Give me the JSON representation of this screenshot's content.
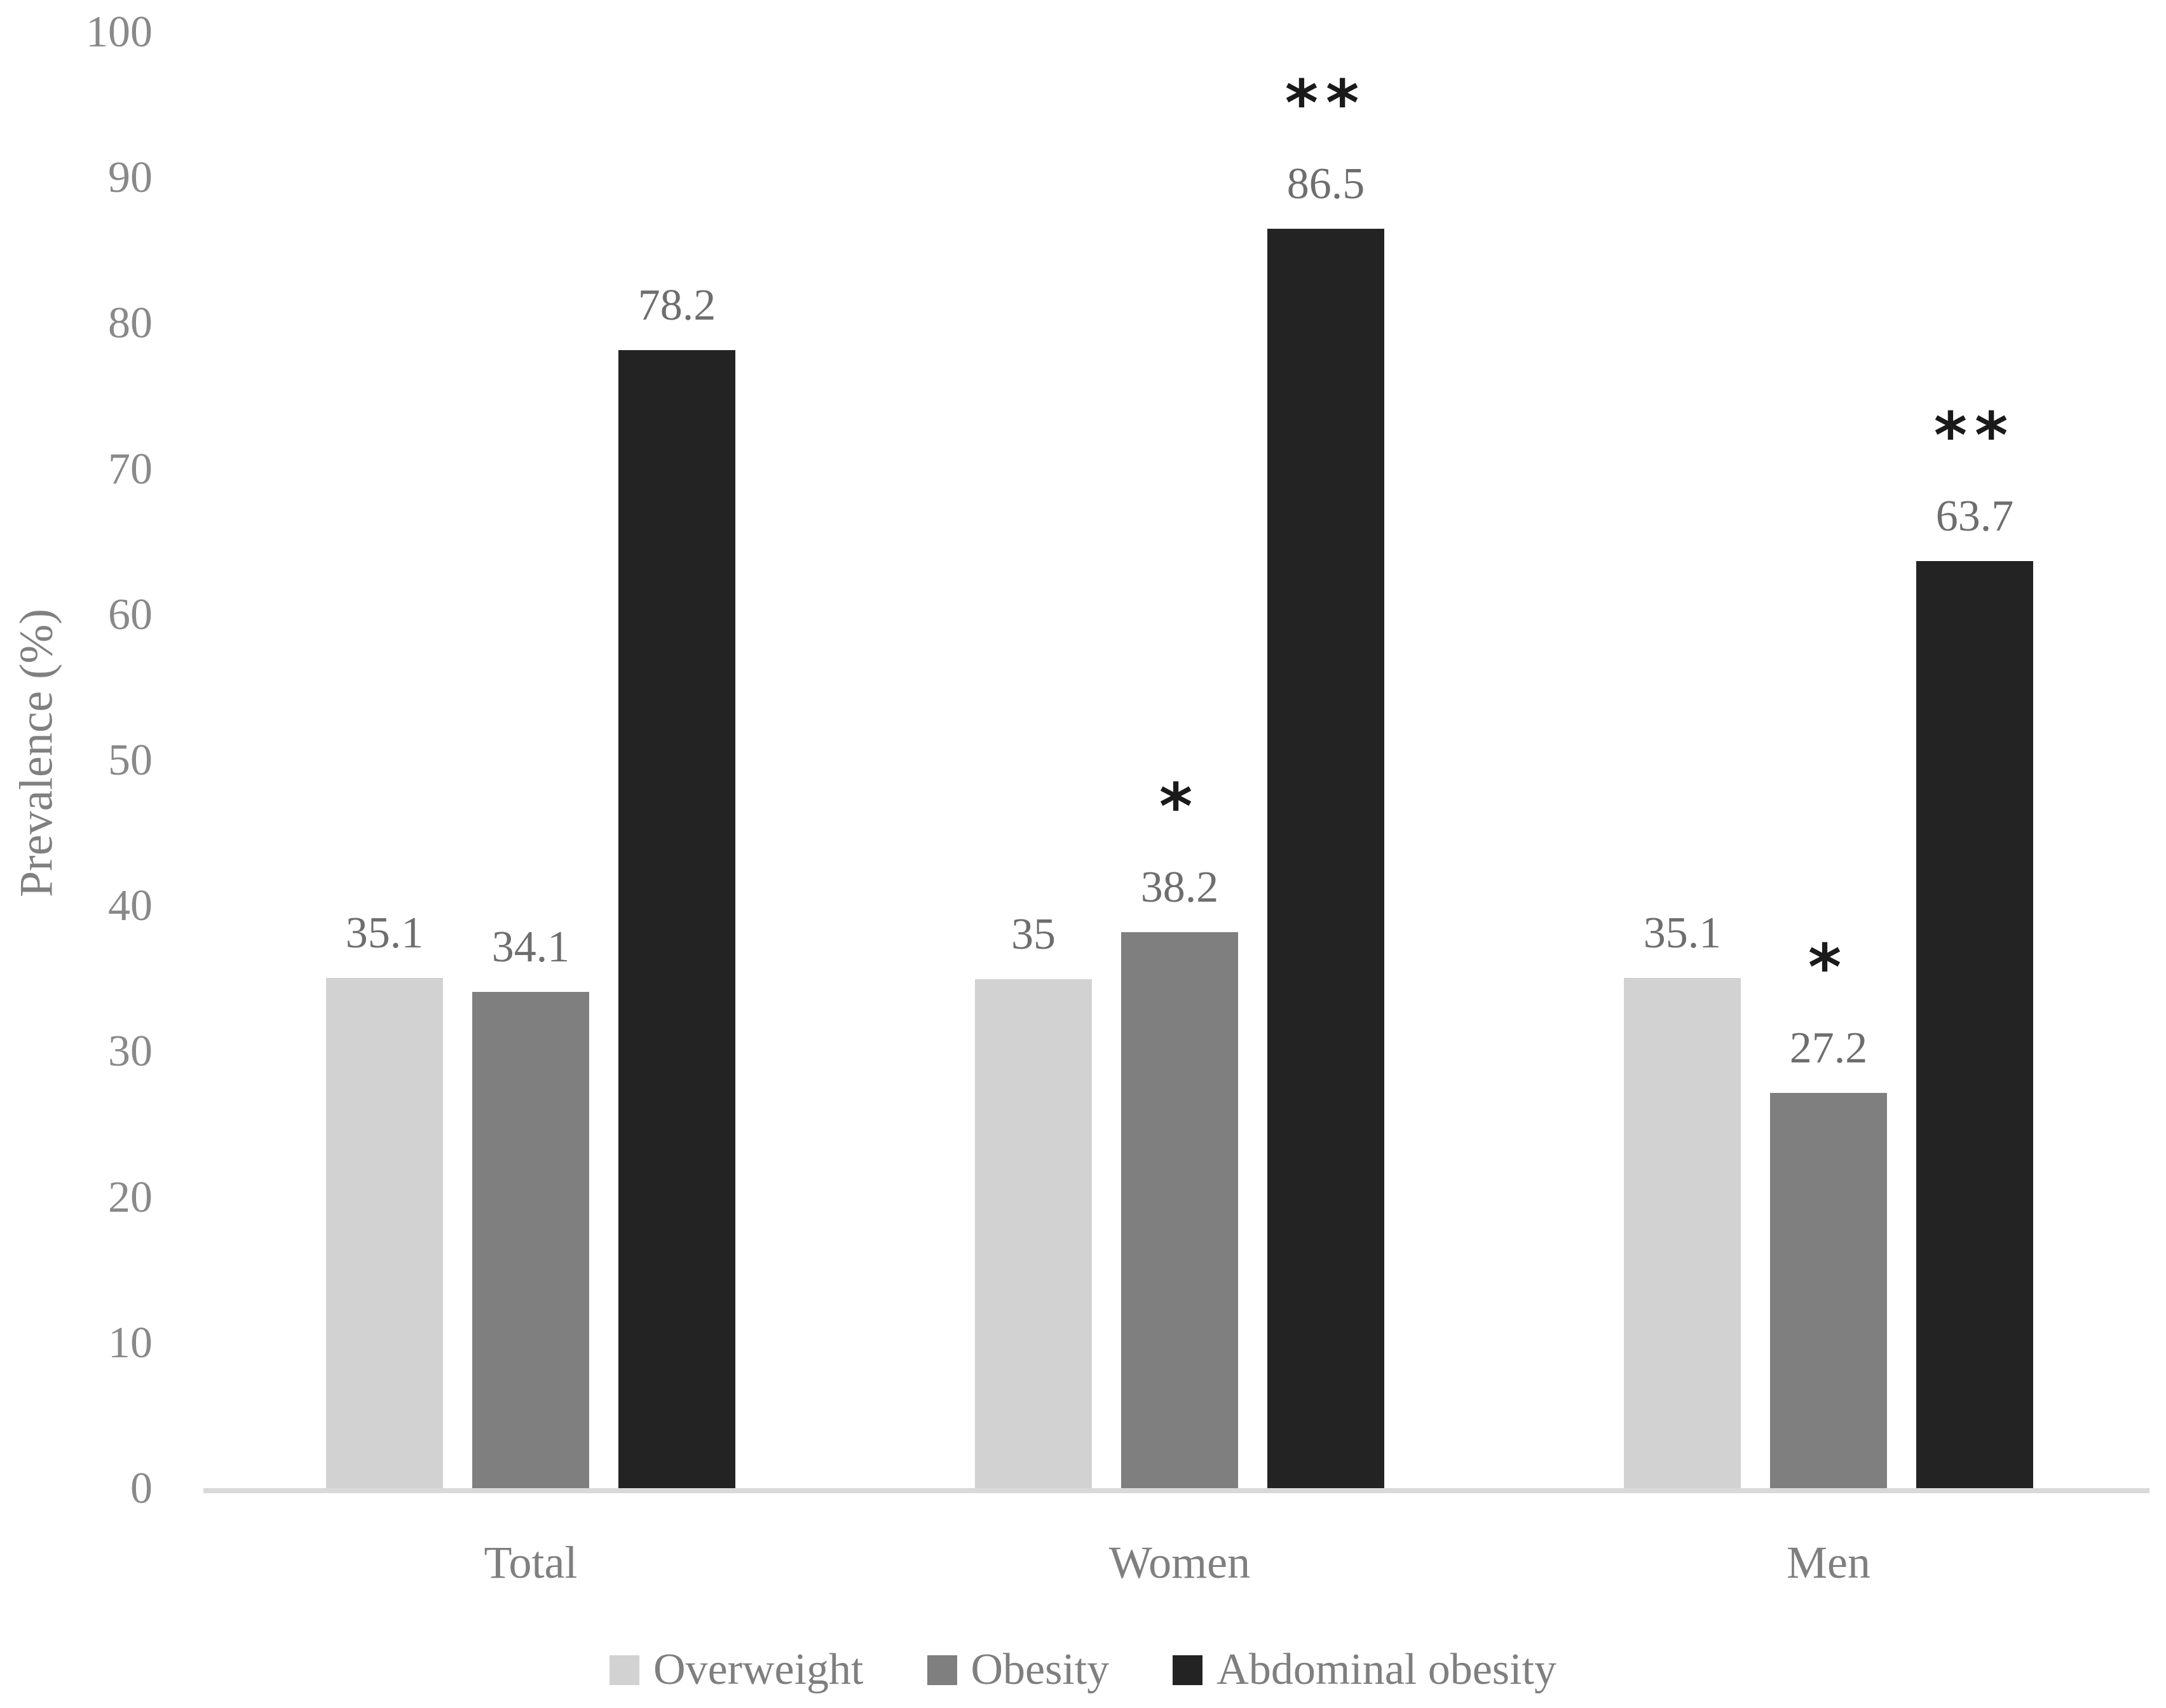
{
  "chart_data": {
    "type": "bar",
    "title": "",
    "xlabel": "",
    "ylabel": "Prevalence (%)",
    "ylim": [
      0,
      100
    ],
    "yticks": [
      0,
      10,
      20,
      30,
      40,
      50,
      60,
      70,
      80,
      90,
      100
    ],
    "grid": false,
    "categories": [
      "Total",
      "Women",
      "Men"
    ],
    "series": [
      {
        "name": "Overweight",
        "color": "#d2d2d2",
        "values": [
          35.1,
          35,
          35.1
        ],
        "value_labels": [
          "35.1",
          "35",
          "35.1"
        ],
        "annotations": [
          "",
          "",
          ""
        ]
      },
      {
        "name": "Obesity",
        "color": "#7f7f7f",
        "values": [
          34.1,
          38.2,
          27.2
        ],
        "value_labels": [
          "34.1",
          "38.2",
          "27.2"
        ],
        "annotations": [
          "",
          "*",
          "*"
        ]
      },
      {
        "name": "Abdominal obesity",
        "color": "#232323",
        "values": [
          78.2,
          86.5,
          63.7
        ],
        "value_labels": [
          "78.2",
          "86.5",
          "63.7"
        ],
        "annotations": [
          "",
          "**",
          "**"
        ]
      }
    ],
    "legend": {
      "position": "bottom",
      "entries": [
        "Overweight",
        "Obesity",
        "Abdominal obesity"
      ]
    }
  },
  "colors": {
    "axis_line": "#d9d9d9",
    "tick_text": "#898989",
    "value_text": "#6e6e6e",
    "category_text": "#7f7f7f",
    "legend_text": "#7f7f7f",
    "annotation_text": "#1a1a1a",
    "background": "#ffffff"
  }
}
